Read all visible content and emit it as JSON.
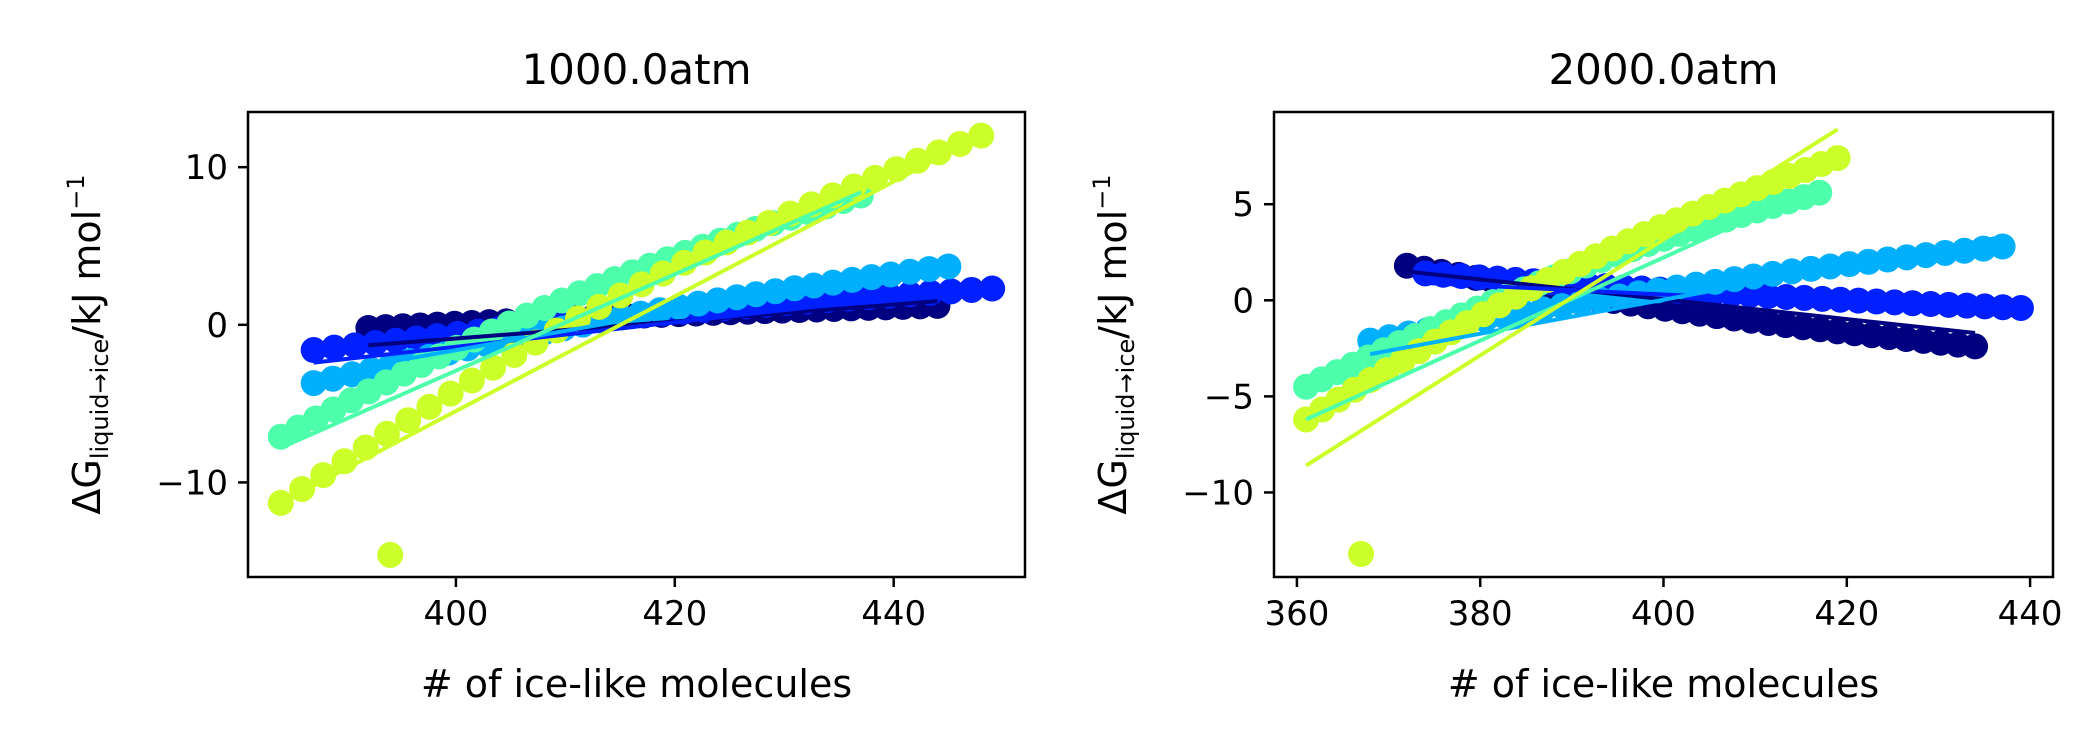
{
  "chart_data": [
    {
      "type": "scatter",
      "title": "1000.0atm",
      "xlabel": "# of ice-like molecules",
      "ylabel": {
        "main": "ΔG",
        "sub": "liquid→ice",
        "unit": "/kJ mol",
        "sup": "−1"
      },
      "xlim": [
        381,
        452
      ],
      "ylim": [
        -16,
        13.5
      ],
      "xticks": [
        400,
        420,
        440
      ],
      "yticks": [
        -10,
        0,
        10
      ],
      "xtick_labels": [
        "400",
        "420",
        "440"
      ],
      "ytick_labels": [
        "−10",
        "0",
        "10"
      ],
      "series": [
        {
          "color": "#000080",
          "x": [
            392,
            444
          ],
          "y": [
            -0.2,
            1.2
          ],
          "fit": [
            [
              392,
              -1.3
            ],
            [
              444,
              1.5
            ]
          ]
        },
        {
          "color": "#0020ff",
          "x": [
            387,
            449
          ],
          "y": [
            -1.6,
            2.3
          ],
          "fit": [
            [
              387,
              -2.4
            ],
            [
              449,
              2.4
            ]
          ]
        },
        {
          "color": "#00b0ff",
          "x": [
            387,
            445
          ],
          "y": [
            -3.7,
            3.7
          ],
          "fit": [
            [
              387,
              -3.2
            ],
            [
              445,
              3.9
            ]
          ]
        },
        {
          "color": "#4dffaa",
          "x": [
            384,
            437
          ],
          "y": [
            -7.1,
            8.2
          ],
          "fit": [
            [
              384,
              -7.8
            ],
            [
              437,
              8.4
            ]
          ]
        },
        {
          "color": "#ccff29",
          "x": [
            384,
            448
          ],
          "y": [
            -11.3,
            12.0
          ],
          "fit": [
            [
              384,
              -11.3
            ],
            [
              448,
              12.0
            ]
          ],
          "outliers": [
            [
              394,
              -14.6
            ]
          ]
        }
      ]
    },
    {
      "type": "scatter",
      "title": "2000.0atm",
      "xlabel": "# of ice-like molecules",
      "ylabel": {
        "main": "ΔG",
        "sub": "liquid→ice",
        "unit": "/kJ mol",
        "sup": "−1"
      },
      "xlim": [
        357.5,
        442.5
      ],
      "ylim": [
        -14.4,
        9.8
      ],
      "xticks": [
        360,
        380,
        400,
        420,
        440
      ],
      "yticks": [
        -10,
        -5,
        0,
        5
      ],
      "xtick_labels": [
        "360",
        "380",
        "400",
        "420",
        "440"
      ],
      "ytick_labels": [
        "−10",
        "−5",
        "0",
        "5"
      ],
      "series": [
        {
          "color": "#000080",
          "x": [
            372,
            434
          ],
          "y": [
            1.8,
            -2.4
          ],
          "fit": [
            [
              372,
              1.5
            ],
            [
              434,
              -1.7
            ]
          ]
        },
        {
          "color": "#0020ff",
          "x": [
            374,
            439
          ],
          "y": [
            1.4,
            -0.4
          ],
          "fit": [
            [
              374,
              0.9
            ],
            [
              439,
              -0.6
            ]
          ]
        },
        {
          "color": "#00b0ff",
          "x": [
            368,
            437
          ],
          "y": [
            -2.1,
            2.8
          ],
          "fit": [
            [
              368,
              -2.8
            ],
            [
              437,
              3.3
            ]
          ]
        },
        {
          "color": "#4dffaa",
          "x": [
            361,
            417
          ],
          "y": [
            -4.5,
            5.6
          ],
          "fit": [
            [
              361,
              -6.2
            ],
            [
              417,
              5.9
            ]
          ]
        },
        {
          "color": "#ccff29",
          "x": [
            361,
            419
          ],
          "y": [
            -6.2,
            7.4
          ],
          "fit": [
            [
              361,
              -8.6
            ],
            [
              419,
              8.9
            ]
          ],
          "outliers": [
            [
              367,
              -13.2
            ]
          ]
        }
      ]
    }
  ]
}
